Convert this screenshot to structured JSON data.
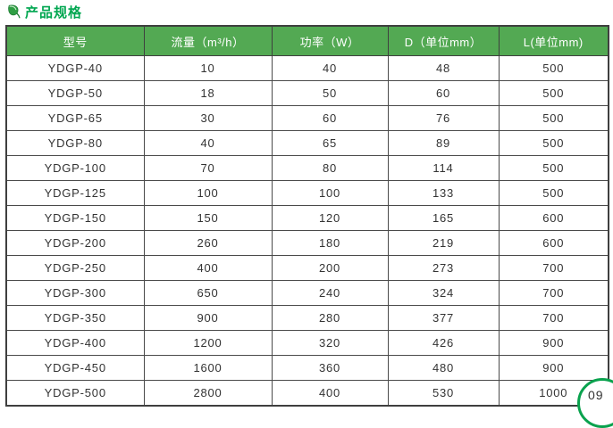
{
  "page": {
    "title": "产品规格"
  },
  "icons": {
    "leaf": "leaf-icon"
  },
  "table": {
    "columns": [
      "型号",
      "流量（m³/h）",
      "功率（W）",
      "D（单位mm）",
      "L(单位mm)"
    ],
    "rows": [
      [
        "YDGP-40",
        "10",
        "40",
        "48",
        "500"
      ],
      [
        "YDGP-50",
        "18",
        "50",
        "60",
        "500"
      ],
      [
        "YDGP-65",
        "30",
        "60",
        "76",
        "500"
      ],
      [
        "YDGP-80",
        "40",
        "65",
        "89",
        "500"
      ],
      [
        "YDGP-100",
        "70",
        "80",
        "114",
        "500"
      ],
      [
        "YDGP-125",
        "100",
        "100",
        "133",
        "500"
      ],
      [
        "YDGP-150",
        "150",
        "120",
        "165",
        "600"
      ],
      [
        "YDGP-200",
        "260",
        "180",
        "219",
        "600"
      ],
      [
        "YDGP-250",
        "400",
        "200",
        "273",
        "700"
      ],
      [
        "YDGP-300",
        "650",
        "240",
        "324",
        "700"
      ],
      [
        "YDGP-350",
        "900",
        "280",
        "377",
        "700"
      ],
      [
        "YDGP-400",
        "1200",
        "320",
        "426",
        "900"
      ],
      [
        "YDGP-450",
        "1600",
        "360",
        "480",
        "900"
      ],
      [
        "YDGP-500",
        "2800",
        "400",
        "530",
        "1000"
      ]
    ]
  },
  "watermark": {
    "text": "09"
  },
  "colors": {
    "title_green": "#00a650",
    "header_bg": "#53a953",
    "header_text": "#ffffff",
    "border": "#4a4a4a",
    "cell_text": "#333333",
    "logo_green": "#0aa24e"
  }
}
